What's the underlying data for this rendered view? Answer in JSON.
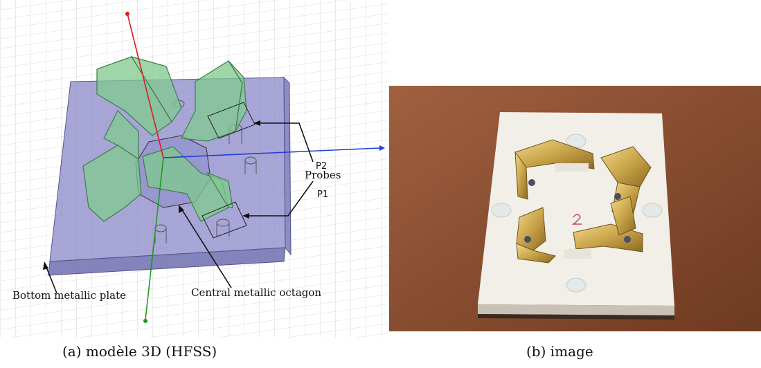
{
  "panel_a": {
    "caption": "(a) modèle 3D (HFSS)",
    "labels": {
      "p2": "P2",
      "probes": "Probes",
      "p1": "P1",
      "bottom_plate": "Bottom metallic plate",
      "central_octagon": "Central metallic octagon"
    },
    "colors": {
      "plate": "#8a88c8",
      "waveguide": "#7fc98f",
      "axis_x": "#1f3fd8",
      "axis_y": "#1e9a1e",
      "axis_z": "#d81e1e",
      "grid": "#c8c8c8"
    }
  },
  "panel_b": {
    "caption": "(b) image",
    "colors": {
      "background": "#8a4a2a",
      "plate": "#f2efe8",
      "gold": "#c9a44a"
    }
  }
}
